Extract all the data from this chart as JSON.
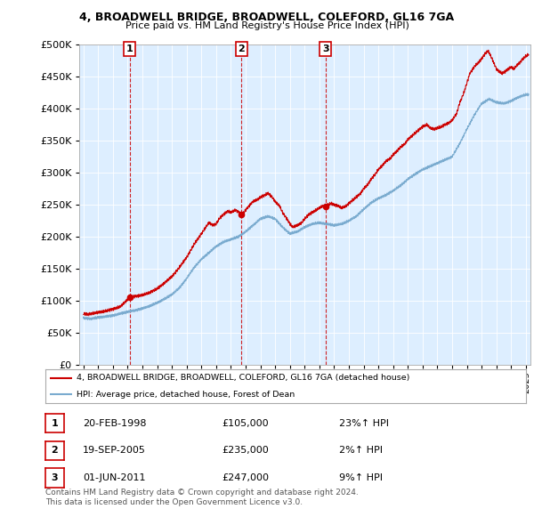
{
  "title_line1": "4, BROADWELL BRIDGE, BROADWELL, COLEFORD, GL16 7GA",
  "title_line2": "Price paid vs. HM Land Registry's House Price Index (HPI)",
  "legend_line1": "4, BROADWELL BRIDGE, BROADWELL, COLEFORD, GL16 7GA (detached house)",
  "legend_line2": "HPI: Average price, detached house, Forest of Dean",
  "transactions": [
    {
      "num": 1,
      "date": "20-FEB-1998",
      "date_dec": 1998.13,
      "price": 105000,
      "label": "23%↑ HPI"
    },
    {
      "num": 2,
      "date": "19-SEP-2005",
      "date_dec": 2005.72,
      "price": 235000,
      "label": "2%↑ HPI"
    },
    {
      "num": 3,
      "date": "01-JUN-2011",
      "date_dec": 2011.42,
      "price": 247000,
      "label": "9%↑ HPI"
    }
  ],
  "red_color": "#cc0000",
  "blue_color": "#7aabcf",
  "plot_bg_color": "#ddeeff",
  "grid_color": "#ffffff",
  "background_color": "#ffffff",
  "ylim": [
    0,
    500000
  ],
  "yticks": [
    0,
    50000,
    100000,
    150000,
    200000,
    250000,
    300000,
    350000,
    400000,
    450000,
    500000
  ],
  "xlim_start": 1994.7,
  "xlim_end": 2025.3,
  "footer_text": "Contains HM Land Registry data © Crown copyright and database right 2024.\nThis data is licensed under the Open Government Licence v3.0."
}
